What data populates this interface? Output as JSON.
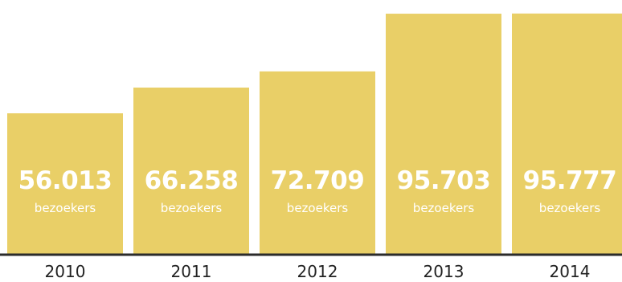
{
  "chart_data": {
    "type": "bar",
    "categories": [
      "2010",
      "2011",
      "2012",
      "2013",
      "2014"
    ],
    "values": [
      56013,
      66258,
      72709,
      95703,
      95777
    ],
    "value_labels": [
      "56.013",
      "66.258",
      "72.709",
      "95.703",
      "95.777"
    ],
    "unit_label": "bezoekers",
    "ylim": [
      0,
      97000
    ],
    "grid": false,
    "legend": "none"
  },
  "colors": {
    "bar": "#e9cf67",
    "axis": "#2b2b2b",
    "label_text": "#ffffff",
    "tick_text": "#222222"
  }
}
